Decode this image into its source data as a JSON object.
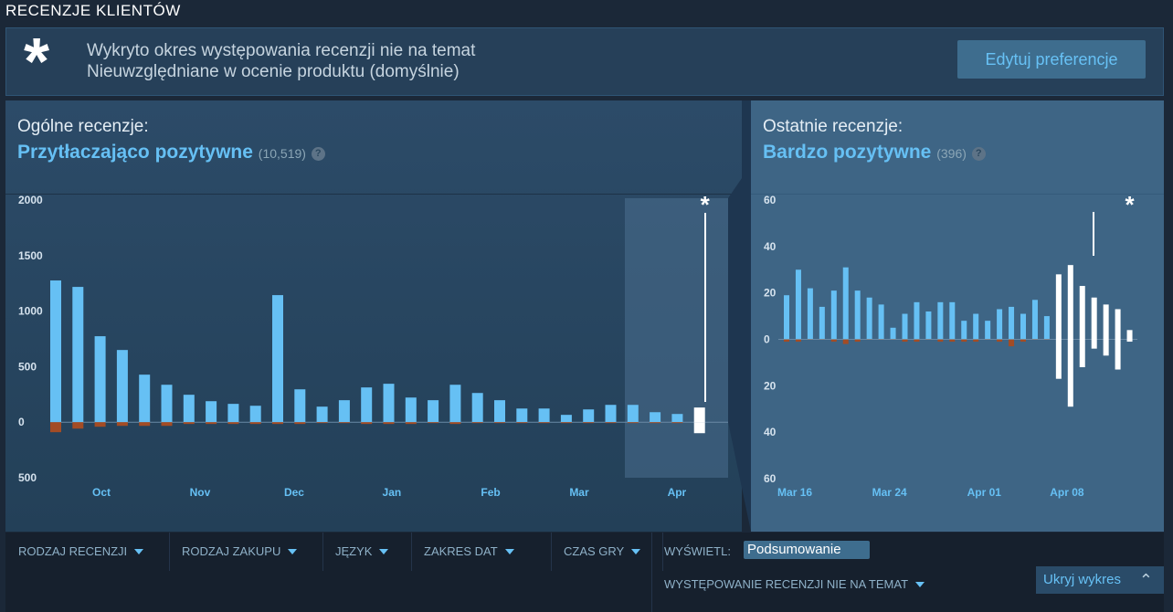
{
  "header": {
    "title": "RECENZJE KLIENTÓW"
  },
  "notice": {
    "icon": "*",
    "line1": "Wykryto okres występowania recenzji nie na temat",
    "line2": "Nieuwzględniane w ocenie produktu (domyślnie)",
    "button": "Edytuj preferencje"
  },
  "overall": {
    "label": "Ogólne recenzje:",
    "summary": "Przytłaczająco pozytywne",
    "count": "(10,519)",
    "help": "?"
  },
  "recent": {
    "label": "Ostatnie recenzje:",
    "summary": "Bardzo pozytywne",
    "count": "(396)",
    "help": "?"
  },
  "filters": {
    "items": [
      "RODZAJ RECENZJI",
      "RODZAJ ZAKUPU",
      "JĘZYK",
      "ZAKRES DAT",
      "CZAS GRY"
    ],
    "display_label": "WYŚWIETL:",
    "display_value": "Podsumowanie",
    "offtopic": "WYSTĘPOWANIE RECENZJI NIE NA TEMAT",
    "hide": "Ukryj wykres"
  },
  "chart_data": [
    {
      "type": "bar",
      "annotation": "*",
      "ylim": [
        -500,
        2000
      ],
      "yticks": [
        2000,
        1500,
        1000,
        500,
        0,
        {
          "value": -500,
          "label": "500"
        }
      ],
      "xticks": [
        {
          "value": 2.06,
          "label": "Oct"
        },
        {
          "value": 6.5,
          "label": "Nov"
        },
        {
          "value": 10.74,
          "label": "Dec"
        },
        {
          "value": 15.14,
          "label": "Jan"
        },
        {
          "value": 19.59,
          "label": "Feb"
        },
        {
          "value": 23.58,
          "label": "Mar"
        },
        {
          "value": 27.98,
          "label": "Apr"
        }
      ],
      "series": [
        {
          "color": "#66c0f4",
          "values": [
            1276,
            1218,
            774,
            650,
            428,
            337,
            247,
            189,
            165,
            148,
            1144,
            296,
            140,
            198,
            313,
            346,
            222,
            198,
            337,
            263,
            198,
            123,
            123,
            66,
            115,
            156,
            156,
            90,
            74,
            null
          ]
        },
        {
          "color": "#a34c25",
          "values": [
            -90,
            -58,
            -41,
            -33,
            -33,
            -33,
            -16,
            -16,
            -16,
            -16,
            -16,
            -16,
            -8,
            -8,
            -16,
            -16,
            -16,
            -8,
            -16,
            -8,
            -8,
            -8,
            -8,
            -8,
            -8,
            -8,
            -8,
            -8,
            -8,
            null
          ]
        },
        {
          "color": "#ffffff",
          "values": [
            null,
            null,
            null,
            null,
            null,
            null,
            null,
            null,
            null,
            null,
            null,
            null,
            null,
            null,
            null,
            null,
            null,
            null,
            null,
            null,
            null,
            null,
            null,
            null,
            null,
            null,
            null,
            null,
            null,
            132
          ]
        },
        {
          "color": "#ffffff",
          "values": [
            null,
            null,
            null,
            null,
            null,
            null,
            null,
            null,
            null,
            null,
            null,
            null,
            null,
            null,
            null,
            null,
            null,
            null,
            null,
            null,
            null,
            null,
            null,
            null,
            null,
            null,
            null,
            null,
            null,
            -99
          ]
        }
      ]
    },
    {
      "type": "bar",
      "annotation": "*",
      "ylim": [
        -60,
        60
      ],
      "yticks": [
        60,
        40,
        20,
        0,
        {
          "value": -20,
          "label": "20"
        },
        {
          "value": -40,
          "label": "40"
        },
        {
          "value": -60,
          "label": "60"
        }
      ],
      "xticks": [
        {
          "value": 0.7,
          "label": "Mar 16"
        },
        {
          "value": 8.7,
          "label": "Mar 24"
        },
        {
          "value": 16.7,
          "label": "Apr 01"
        },
        {
          "value": 23.7,
          "label": "Apr 08"
        }
      ],
      "series": [
        {
          "color": "#66c0f4",
          "values": [
            19,
            30,
            22,
            14,
            21,
            31,
            21,
            18,
            15,
            5,
            11,
            16,
            12,
            16,
            16,
            8,
            11,
            8,
            13,
            14,
            11,
            17,
            10,
            null,
            null,
            null,
            null,
            null,
            null,
            null
          ]
        },
        {
          "color": "#a34c25",
          "values": [
            -1,
            -1,
            0,
            0,
            -1,
            -2,
            -1,
            0,
            0,
            0,
            -1,
            -1,
            0,
            -1,
            -1,
            -1,
            -1,
            0,
            -1,
            -3,
            -1,
            0,
            0,
            null,
            null,
            null,
            null,
            null,
            null,
            null
          ]
        },
        {
          "color": "#ffffff",
          "values": [
            null,
            null,
            null,
            null,
            null,
            null,
            null,
            null,
            null,
            null,
            null,
            null,
            null,
            null,
            null,
            null,
            null,
            null,
            null,
            null,
            null,
            null,
            null,
            28,
            32,
            23,
            18,
            15,
            13,
            4
          ]
        },
        {
          "color": "#ffffff",
          "values": [
            null,
            null,
            null,
            null,
            null,
            null,
            null,
            null,
            null,
            null,
            null,
            null,
            null,
            null,
            null,
            null,
            null,
            null,
            null,
            null,
            null,
            null,
            null,
            -17,
            -29,
            -12,
            -4,
            -7,
            -13,
            -1
          ]
        }
      ]
    }
  ]
}
